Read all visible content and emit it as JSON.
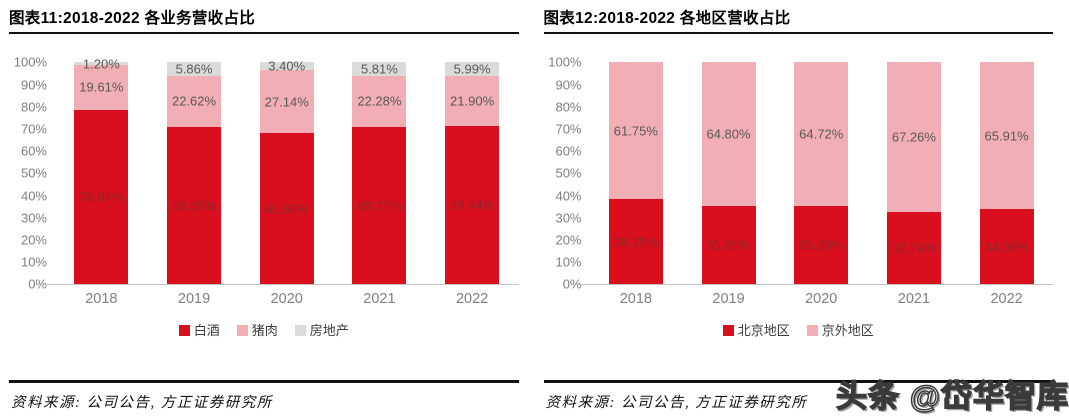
{
  "watermark": "头条 @岱华智库",
  "chart_data": [
    {
      "type": "bar",
      "subtype": "stacked-100-percent",
      "title": "图表11:2018-2022 各业务营收占比",
      "source_note": "资料来源: 公司公告, 方正证券研究所",
      "categories": [
        "2018",
        "2019",
        "2020",
        "2021",
        "2022"
      ],
      "series": [
        {
          "name": "白酒",
          "color": "#D90F1E",
          "value_label_color": "#8C262C",
          "values": [
            76.84,
            69.05,
            65.66,
            68.77,
            69.44
          ]
        },
        {
          "name": "猪肉",
          "color": "#F2AEB5",
          "value_label_color": "#595959",
          "values": [
            19.61,
            22.62,
            27.14,
            22.28,
            21.9
          ]
        },
        {
          "name": "房地产",
          "color": "#DBDBDB",
          "value_label_color": "#595959",
          "values": [
            1.2,
            5.86,
            3.4,
            5.81,
            5.99
          ]
        }
      ],
      "xlabel": "",
      "ylabel": "",
      "ylim": [
        0,
        100
      ],
      "y_tick_step": 10,
      "y_tick_suffix": "%",
      "grid": false,
      "legend_position": "bottom"
    },
    {
      "type": "bar",
      "subtype": "stacked-100-percent",
      "title": "图表12:2018-2022 各地区营收占比",
      "source_note": "资料来源: 公司公告, 方正证券研究所",
      "categories": [
        "2018",
        "2019",
        "2020",
        "2021",
        "2022"
      ],
      "series": [
        {
          "name": "北京地区",
          "color": "#D90F1E",
          "value_label_color": "#8C262C",
          "values": [
            38.25,
            35.2,
            35.28,
            32.74,
            34.09
          ]
        },
        {
          "name": "京外地区",
          "color": "#F2AEB5",
          "value_label_color": "#595959",
          "values": [
            61.75,
            64.8,
            64.72,
            67.26,
            65.91
          ]
        }
      ],
      "xlabel": "",
      "ylabel": "",
      "ylim": [
        0,
        100
      ],
      "y_tick_step": 10,
      "y_tick_suffix": "%",
      "grid": false,
      "legend_position": "bottom"
    }
  ]
}
